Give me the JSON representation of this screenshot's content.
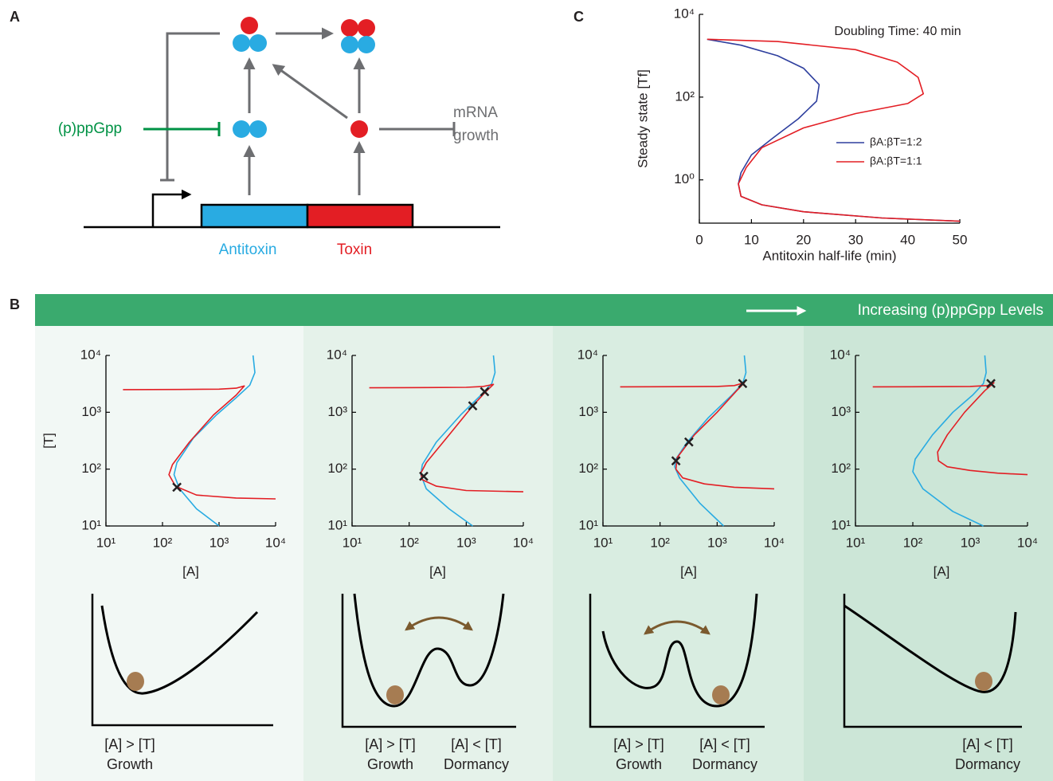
{
  "panel_labels": [
    "A",
    "B",
    "C"
  ],
  "diagram": {
    "signal": "(p)ppGpp",
    "targets": [
      "mRNA",
      "growth"
    ],
    "genes": [
      "Antitoxin",
      "Toxin"
    ]
  },
  "banner": "Increasing (p)ppGpp Levels",
  "landscapes": [
    {
      "states": [
        {
          "condition": "[A] > [T]",
          "outcome": "Growth"
        }
      ]
    },
    {
      "states": [
        {
          "condition": "[A] > [T]",
          "outcome": "Growth"
        },
        {
          "condition": "[A] < [T]",
          "outcome": "Dormancy"
        }
      ]
    },
    {
      "states": [
        {
          "condition": "[A] > [T]",
          "outcome": "Growth"
        },
        {
          "condition": "[A] < [T]",
          "outcome": "Dormancy"
        }
      ]
    },
    {
      "states": [
        {
          "condition": "[A] < [T]",
          "outcome": "Dormancy"
        }
      ]
    }
  ],
  "chart_data": [
    {
      "type": "line",
      "annotation": "Doubling Time: 40 min",
      "xlabel": "Antitoxin half-life (min)",
      "ylabel": "Steady state [Tf]",
      "xscale": "linear",
      "yscale": "log",
      "xlim": [
        0,
        50
      ],
      "ylim": [
        0.09,
        10000
      ],
      "xticks": [
        0,
        10,
        20,
        30,
        40,
        50
      ],
      "yticks": [
        {
          "value": 1,
          "label": "10⁰"
        },
        {
          "value": 100,
          "label": "10²"
        },
        {
          "value": 10000,
          "label": "10⁴"
        }
      ],
      "legend": "center right",
      "series": [
        {
          "name": "βA:βT=1:2",
          "color": "#2e3f9e",
          "x": [
            1.5,
            8,
            15,
            20,
            23,
            22.5,
            19,
            14,
            10,
            8,
            7.5,
            8,
            12,
            20,
            35,
            50
          ],
          "values": [
            2500,
            1800,
            1000,
            500,
            200,
            80,
            30,
            10,
            4,
            1.5,
            0.8,
            0.4,
            0.25,
            0.17,
            0.12,
            0.1
          ]
        },
        {
          "name": "βA:βT=1:1",
          "color": "#e31e24",
          "x": [
            1.5,
            15,
            30,
            38,
            42,
            43,
            40,
            30,
            20,
            12,
            9,
            7.5,
            8,
            12,
            20,
            35,
            50
          ],
          "values": [
            2500,
            2200,
            1400,
            700,
            300,
            120,
            70,
            40,
            18,
            6,
            2,
            0.8,
            0.4,
            0.25,
            0.17,
            0.12,
            0.1
          ]
        }
      ]
    },
    {
      "type": "line",
      "xlabel": "[A]",
      "ylabel": "[T]",
      "xscale": "log",
      "yscale": "log",
      "xlim": [
        10,
        10000
      ],
      "ylim": [
        10,
        10000
      ],
      "xticks": [
        {
          "value": 10,
          "label": "10¹"
        },
        {
          "value": 100,
          "label": "10²"
        },
        {
          "value": 1000,
          "label": "10³"
        },
        {
          "value": 10000,
          "label": "10⁴"
        }
      ],
      "yticks": [
        {
          "value": 10,
          "label": "10¹"
        },
        {
          "value": 100,
          "label": "10²"
        },
        {
          "value": 1000,
          "label": "10³"
        },
        {
          "value": 10000,
          "label": "10⁴"
        }
      ],
      "series": [
        {
          "color": "#29abe2",
          "x": [
            4000,
            4300,
            3500,
            2000,
            900,
            350,
            180,
            160,
            200,
            400,
            1000
          ],
          "values": [
            10000,
            5000,
            3000,
            1800,
            900,
            350,
            130,
            80,
            45,
            20,
            10
          ]
        },
        {
          "color": "#e31e24",
          "x": [
            20,
            200,
            1000,
            2000,
            2800,
            2000,
            800,
            300,
            150,
            130,
            170,
            400,
            2000,
            10000
          ],
          "values": [
            2500,
            2520,
            2550,
            2650,
            2900,
            2000,
            900,
            300,
            120,
            80,
            50,
            35,
            31,
            30
          ]
        }
      ],
      "fixed_points": {
        "color": "#231f20",
        "x": [
          180
        ],
        "values": [
          48
        ]
      }
    },
    {
      "type": "line",
      "xlabel": "[A]",
      "xscale": "log",
      "yscale": "log",
      "xlim": [
        10,
        10000
      ],
      "ylim": [
        10,
        10000
      ],
      "xticks": [
        {
          "value": 10,
          "label": "10¹"
        },
        {
          "value": 100,
          "label": "10²"
        },
        {
          "value": 1000,
          "label": "10³"
        },
        {
          "value": 10000,
          "label": "10⁴"
        }
      ],
      "yticks": [
        {
          "value": 10,
          "label": "10¹"
        },
        {
          "value": 100,
          "label": "10²"
        },
        {
          "value": 1000,
          "label": "10³"
        },
        {
          "value": 10000,
          "label": "10⁴"
        }
      ],
      "series": [
        {
          "color": "#29abe2",
          "x": [
            3000,
            3200,
            2800,
            1800,
            800,
            300,
            170,
            160,
            200,
            500,
            1300
          ],
          "values": [
            10000,
            5000,
            3200,
            2000,
            900,
            300,
            120,
            80,
            45,
            20,
            10
          ]
        },
        {
          "color": "#e31e24",
          "x": [
            20,
            200,
            1000,
            2000,
            3000,
            2200,
            1300,
            500,
            200,
            160,
            170,
            300,
            1000,
            10000
          ],
          "values": [
            2700,
            2720,
            2750,
            2850,
            3100,
            2300,
            1300,
            400,
            130,
            85,
            65,
            50,
            42,
            40
          ]
        }
      ],
      "fixed_points": {
        "color": "#231f20",
        "x": [
          180,
          1300,
          2100
        ],
        "values": [
          75,
          1300,
          2300
        ]
      }
    },
    {
      "type": "line",
      "xlabel": "[A]",
      "xscale": "log",
      "yscale": "log",
      "xlim": [
        10,
        10000
      ],
      "ylim": [
        10,
        10000
      ],
      "xticks": [
        {
          "value": 10,
          "label": "10¹"
        },
        {
          "value": 100,
          "label": "10²"
        },
        {
          "value": 1000,
          "label": "10³"
        },
        {
          "value": 10000,
          "label": "10⁴"
        }
      ],
      "yticks": [
        {
          "value": 10,
          "label": "10¹"
        },
        {
          "value": 100,
          "label": "10²"
        },
        {
          "value": 1000,
          "label": "10³"
        },
        {
          "value": 10000,
          "label": "10⁴"
        }
      ],
      "series": [
        {
          "color": "#29abe2",
          "x": [
            3000,
            3200,
            2800,
            1800,
            700,
            300,
            190,
            180,
            220,
            500,
            1300
          ],
          "values": [
            10000,
            5000,
            3200,
            2000,
            800,
            300,
            150,
            110,
            70,
            25,
            10
          ]
        },
        {
          "color": "#e31e24",
          "x": [
            20,
            200,
            1000,
            2000,
            3000,
            2200,
            1000,
            400,
            200,
            190,
            250,
            600,
            2000,
            10000
          ],
          "values": [
            2800,
            2820,
            2850,
            2950,
            3300,
            2400,
            1000,
            400,
            160,
            100,
            70,
            55,
            48,
            45
          ]
        }
      ],
      "fixed_points": {
        "color": "#231f20",
        "x": [
          190,
          320,
          2800
        ],
        "values": [
          140,
          300,
          3200
        ]
      }
    },
    {
      "type": "line",
      "xlabel": "[A]",
      "xscale": "log",
      "yscale": "log",
      "xlim": [
        10,
        10000
      ],
      "ylim": [
        10,
        10000
      ],
      "xticks": [
        {
          "value": 10,
          "label": "10¹"
        },
        {
          "value": 100,
          "label": "10²"
        },
        {
          "value": 1000,
          "label": "10³"
        },
        {
          "value": 10000,
          "label": "10⁴"
        }
      ],
      "yticks": [
        {
          "value": 10,
          "label": "10¹"
        },
        {
          "value": 100,
          "label": "10²"
        },
        {
          "value": 1000,
          "label": "10³"
        },
        {
          "value": 10000,
          "label": "10⁴"
        }
      ],
      "series": [
        {
          "color": "#29abe2",
          "x": [
            1800,
            1900,
            1700,
            1100,
            500,
            220,
            110,
            100,
            150,
            500,
            1700
          ],
          "values": [
            10000,
            5000,
            3200,
            2000,
            1000,
            400,
            150,
            90,
            45,
            18,
            10
          ]
        },
        {
          "color": "#e31e24",
          "x": [
            20,
            200,
            1000,
            2000,
            2600,
            1800,
            800,
            400,
            270,
            280,
            400,
            1000,
            3000,
            10000
          ],
          "values": [
            2800,
            2820,
            2850,
            2950,
            3300,
            2400,
            1000,
            400,
            200,
            140,
            110,
            95,
            85,
            80
          ]
        }
      ],
      "fixed_points": {
        "color": "#231f20",
        "x": [
          2300
        ],
        "values": [
          3200
        ]
      }
    }
  ]
}
